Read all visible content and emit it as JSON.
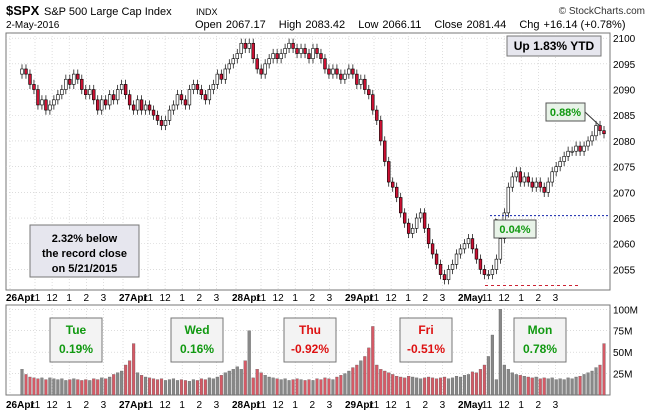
{
  "header": {
    "symbol": "$SPX",
    "name": "S&P 500 Large Cap Index",
    "exchange": "INDX",
    "date": "2-May-2016",
    "watermark": "© StockCharts.com",
    "open_label": "Open",
    "open_value": "2067.17",
    "high_label": "High",
    "high_value": "2083.42",
    "low_label": "Low",
    "low_value": "2066.11",
    "close_label": "Close",
    "close_value": "2081.44",
    "chg_label": "Chg",
    "chg_value": "+16.14 (+0.78%)"
  },
  "annotations": {
    "ytd": "Up 1.83% YTD",
    "callout_088": "0.88%",
    "callout_004": "0.04%",
    "record_line1": "2.32% below",
    "record_line2": "the record close",
    "record_line3": "on 5/21/2015"
  },
  "days": [
    {
      "day": "Tue",
      "change": "0.19%",
      "color": "#119911"
    },
    {
      "day": "Wed",
      "change": "0.16%",
      "color": "#119911"
    },
    {
      "day": "Thu",
      "change": "-0.92%",
      "color": "#dd1111"
    },
    {
      "day": "Fri",
      "change": "-0.51%",
      "color": "#dd1111"
    },
    {
      "day": "Mon",
      "change": "0.78%",
      "color": "#119911"
    }
  ],
  "x_labels": [
    {
      "t": "26Apr",
      "bold": true
    },
    {
      "t": "11",
      "bold": false
    },
    {
      "t": "12",
      "bold": false
    },
    {
      "t": "1",
      "bold": false
    },
    {
      "t": "2",
      "bold": false
    },
    {
      "t": "3",
      "bold": false
    },
    {
      "t": "27Apr",
      "bold": true
    },
    {
      "t": "11",
      "bold": false
    },
    {
      "t": "12",
      "bold": false
    },
    {
      "t": "1",
      "bold": false
    },
    {
      "t": "2",
      "bold": false
    },
    {
      "t": "3",
      "bold": false
    },
    {
      "t": "28Apr",
      "bold": true
    },
    {
      "t": "11",
      "bold": false
    },
    {
      "t": "12",
      "bold": false
    },
    {
      "t": "1",
      "bold": false
    },
    {
      "t": "2",
      "bold": false
    },
    {
      "t": "3",
      "bold": false
    },
    {
      "t": "29Apr",
      "bold": true
    },
    {
      "t": "11",
      "bold": false
    },
    {
      "t": "12",
      "bold": false
    },
    {
      "t": "1",
      "bold": false
    },
    {
      "t": "2",
      "bold": false
    },
    {
      "t": "3",
      "bold": false
    },
    {
      "t": "2May",
      "bold": true
    },
    {
      "t": "11",
      "bold": false
    },
    {
      "t": "12",
      "bold": false
    },
    {
      "t": "1",
      "bold": false
    },
    {
      "t": "2",
      "bold": false
    },
    {
      "t": "3",
      "bold": false
    }
  ],
  "chart_data": {
    "type": "candlestick",
    "price_ticks": [
      2055,
      2060,
      2065,
      2070,
      2075,
      2080,
      2085,
      2090,
      2095,
      2100
    ],
    "price_range": [
      2051,
      2101
    ],
    "volume_ticks": [
      "25M",
      "50M",
      "75M",
      "100M"
    ],
    "volume_tick_values": [
      25,
      50,
      75,
      100
    ],
    "volume_range": [
      0,
      105
    ],
    "record_close_ref": 2065.3,
    "colors": {
      "up": "#ffffff",
      "down": "#cc1133",
      "vol_up": "#888888",
      "vol_down": "#d45a66",
      "grid": "#c8c8c8"
    },
    "closes": [
      2094,
      2093,
      2091,
      2090,
      2087,
      2088,
      2086,
      2087,
      2088,
      2089,
      2090,
      2092,
      2091,
      2093,
      2092,
      2090,
      2089,
      2090,
      2088,
      2086,
      2088,
      2087,
      2089,
      2088,
      2090,
      2091,
      2089,
      2087,
      2086,
      2088,
      2086,
      2087,
      2086,
      2085,
      2084,
      2083,
      2084,
      2086,
      2087,
      2089,
      2088,
      2087,
      2090,
      2091,
      2090,
      2089,
      2088,
      2090,
      2091,
      2093,
      2092,
      2094,
      2095,
      2096,
      2097,
      2099,
      2098,
      2099,
      2096,
      2094,
      2093,
      2095,
      2096,
      2097,
      2096,
      2097,
      2098,
      2099,
      2098,
      2097,
      2098,
      2097,
      2096,
      2098,
      2097,
      2096,
      2094,
      2093,
      2094,
      2093,
      2092,
      2093,
      2094,
      2093,
      2091,
      2092,
      2090,
      2089,
      2086,
      2084,
      2080,
      2076,
      2072,
      2071,
      2069,
      2066,
      2064,
      2062,
      2063,
      2065,
      2066,
      2063,
      2060,
      2058,
      2056,
      2054,
      2053,
      2055,
      2056,
      2058,
      2059,
      2060,
      2061,
      2059,
      2057,
      2055,
      2054,
      2054,
      2055,
      2057,
      2061,
      2066,
      2071,
      2073,
      2074,
      2072,
      2073,
      2072,
      2071,
      2072,
      2071,
      2070,
      2072,
      2074,
      2075,
      2076,
      2077,
      2078,
      2078,
      2079,
      2078,
      2079,
      2080,
      2081,
      2083,
      2082,
      2081.4
    ],
    "volumes": [
      30,
      24,
      21,
      20,
      19,
      20,
      18,
      20,
      19,
      18,
      19,
      17,
      18,
      19,
      18,
      17,
      18,
      17,
      19,
      18,
      20,
      19,
      21,
      24,
      26,
      28,
      35,
      40,
      60,
      26,
      23,
      21,
      20,
      19,
      18,
      19,
      17,
      18,
      19,
      17,
      18,
      17,
      16,
      18,
      17,
      19,
      18,
      20,
      19,
      21,
      23,
      26,
      28,
      30,
      33,
      30,
      40,
      75,
      20,
      30,
      26,
      23,
      21,
      20,
      19,
      18,
      19,
      17,
      18,
      19,
      18,
      17,
      18,
      17,
      19,
      18,
      20,
      19,
      18,
      21,
      23,
      25,
      28,
      32,
      35,
      40,
      45,
      55,
      80,
      35,
      30,
      28,
      26,
      24,
      22,
      21,
      20,
      22,
      21,
      20,
      19,
      20,
      21,
      20,
      19,
      20,
      21,
      19,
      20,
      22,
      21,
      23,
      24,
      27,
      26,
      30,
      35,
      45,
      70,
      18,
      100,
      35,
      30,
      26,
      24,
      23,
      22,
      21,
      20,
      21,
      19,
      20,
      19,
      20,
      18,
      19,
      18,
      20,
      19,
      21,
      22,
      24,
      26,
      28,
      32,
      35,
      60
    ]
  }
}
